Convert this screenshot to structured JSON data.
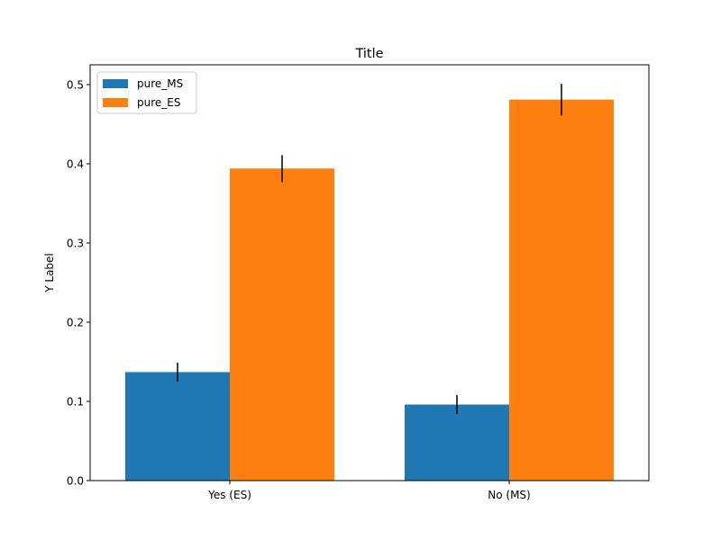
{
  "chart_data": {
    "type": "bar",
    "title": "Title",
    "xlabel": "",
    "ylabel": "Y Label",
    "categories": [
      "Yes (ES)",
      "No (MS)"
    ],
    "ylim": [
      0,
      0.525
    ],
    "yticks": [
      "0.0",
      "0.1",
      "0.2",
      "0.3",
      "0.4",
      "0.5"
    ],
    "grid": false,
    "legend_position": "top-left",
    "series": [
      {
        "name": "pure_MS",
        "color": "#1f77b4",
        "values": [
          0.137,
          0.096
        ],
        "errors": [
          0.012,
          0.012
        ]
      },
      {
        "name": "pure_ES",
        "color": "#ff7f0e",
        "values": [
          0.394,
          0.481
        ],
        "errors": [
          0.017,
          0.02
        ]
      }
    ]
  }
}
